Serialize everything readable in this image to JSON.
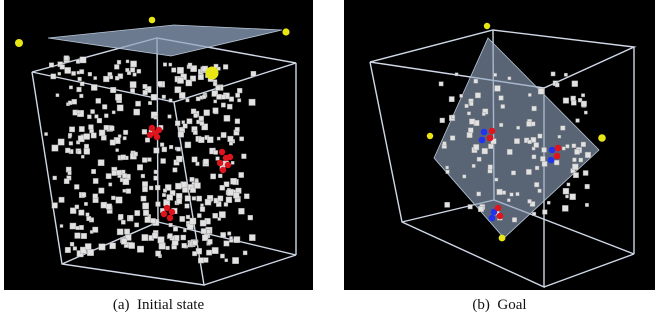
{
  "figure": {
    "panels": [
      {
        "id": "a",
        "caption": "(a)  Initial state",
        "colors": {
          "background": "#000000",
          "cube_edge": "#e6ecf5",
          "particle": "#e2e2e2",
          "highlight": "#e0141c",
          "plane": "#8fa3bd",
          "marker": "#e8e614"
        }
      },
      {
        "id": "b",
        "caption": "(b)  Goal",
        "colors": {
          "background": "#000000",
          "cube_edge": "#e6ecf5",
          "particle": "#e2e2e2",
          "highlight_red": "#e0141c",
          "highlight_blue": "#2233ee",
          "plane": "#8fa3bd",
          "marker": "#e8e614"
        }
      }
    ]
  }
}
